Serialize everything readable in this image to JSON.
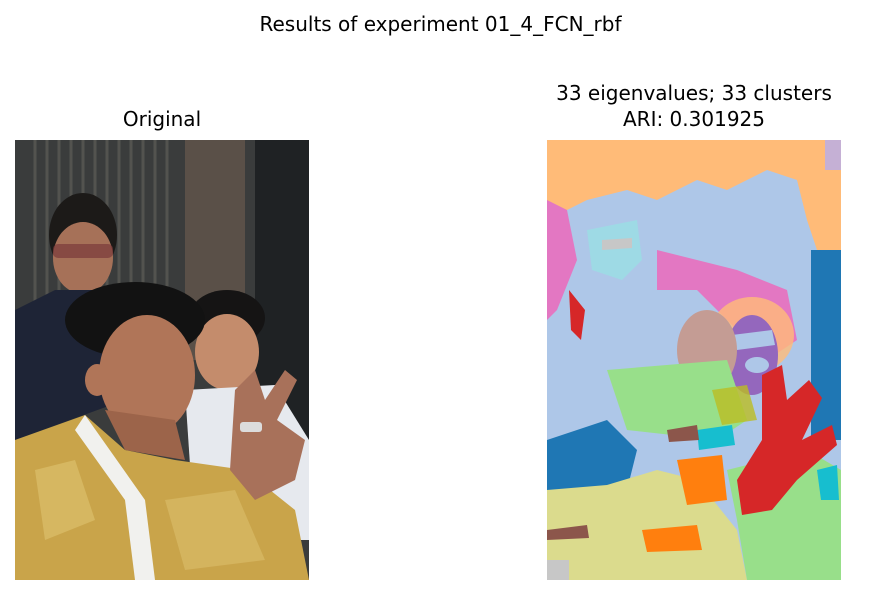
{
  "figure": {
    "suptitle": "Results of experiment 01_4_FCN_rbf",
    "left_panel": {
      "title": "Original"
    },
    "right_panel": {
      "title_line1": "33 eigenvalues; 33 clusters",
      "title_line2": "ARI: 0.301925"
    }
  },
  "colors": {
    "photo_background": "#2e3032",
    "photo_robe": "#c9a44a",
    "seg_orange": "#ffbb78",
    "seg_lightblue": "#aec7e8",
    "seg_pink": "#e377c2",
    "seg_blue": "#1f77b4",
    "seg_green": "#98df8a",
    "seg_red": "#d62728",
    "seg_purple": "#9467bd",
    "seg_brown": "#8c564b",
    "seg_tan": "#c49c94",
    "seg_khaki": "#dbdb8d",
    "seg_cyan": "#17becf",
    "seg_darkorange": "#ff7f0e",
    "seg_gray": "#c7c7c7"
  }
}
